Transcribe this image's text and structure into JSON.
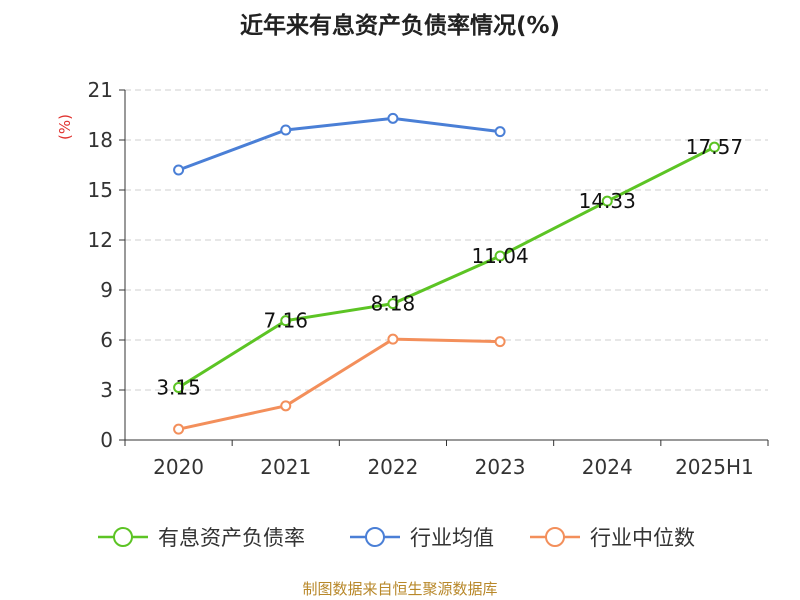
{
  "source": "制图数据来自恒生聚源数据库",
  "chart_data": {
    "type": "line",
    "title": "近年来有息资产负债率情况(%)",
    "ylabel": "(%)",
    "xlabel": "",
    "categories": [
      "2020",
      "2021",
      "2022",
      "2023",
      "2024",
      "2025H1"
    ],
    "ylim": [
      0,
      21
    ],
    "yticks": [
      0,
      3,
      6,
      9,
      12,
      15,
      18,
      21
    ],
    "grid": true,
    "legend_position": "bottom",
    "series": [
      {
        "name": "有息资产负债率",
        "color": "#5cc424",
        "values": [
          3.15,
          7.16,
          8.18,
          11.04,
          14.33,
          17.57
        ],
        "labels": [
          "3.15",
          "7.16",
          "8.18",
          "11.04",
          "14.33",
          "17.57"
        ]
      },
      {
        "name": "行业均值",
        "color": "#4a7fd6",
        "values": [
          16.2,
          18.6,
          19.3,
          18.5,
          null,
          null
        ]
      },
      {
        "name": "行业中位数",
        "color": "#f38f5b",
        "values": [
          0.65,
          2.05,
          6.05,
          5.9,
          null,
          null
        ]
      }
    ]
  }
}
